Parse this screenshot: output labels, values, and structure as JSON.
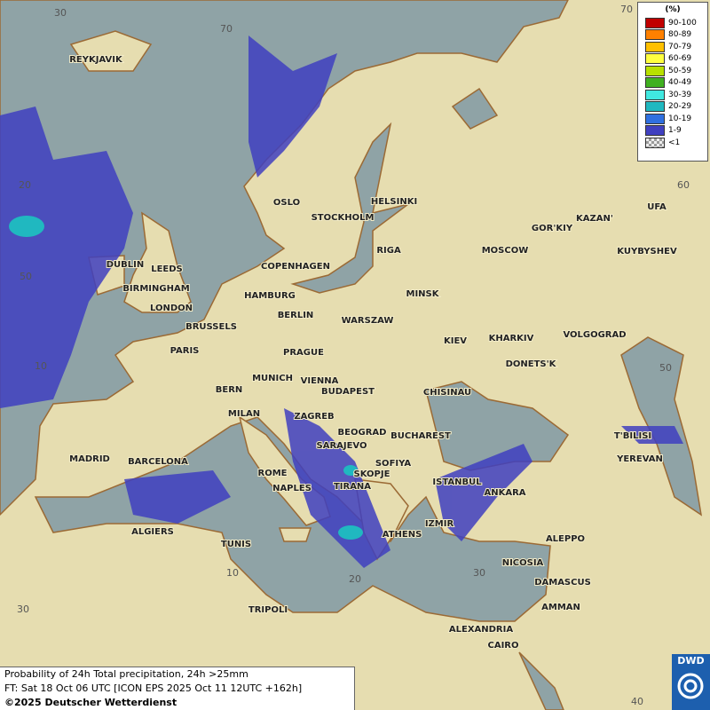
{
  "legend": {
    "title": "(%)",
    "items": [
      {
        "label": "90-100",
        "color": "#c00000"
      },
      {
        "label": "80-89",
        "color": "#ff8000"
      },
      {
        "label": "70-79",
        "color": "#ffc000"
      },
      {
        "label": "60-69",
        "color": "#ffff40"
      },
      {
        "label": "50-59",
        "color": "#b8e000"
      },
      {
        "label": "40-49",
        "color": "#40b020"
      },
      {
        "label": "30-39",
        "color": "#40e8e0"
      },
      {
        "label": "20-29",
        "color": "#20b8c0"
      },
      {
        "label": "10-19",
        "color": "#3070e0"
      },
      {
        "label": "1-9",
        "color": "#4040c0"
      },
      {
        "label": "<1",
        "color": "#9a9a9a"
      }
    ]
  },
  "grid_labels": [
    "30",
    "70",
    "70",
    "20",
    "50",
    "10",
    "60",
    "50",
    "10",
    "20",
    "30",
    "30",
    "40"
  ],
  "cities": [
    "REYKJAVIK",
    "OSLO",
    "STOCKHOLM",
    "HELSINKI",
    "DUBLIN",
    "LEEDS",
    "BIRMINGHAM",
    "LONDON",
    "COPENHAGEN",
    "RIGA",
    "MOSCOW",
    "GOR'KIY",
    "KAZAN'",
    "UFA",
    "KUYBYSHEV",
    "HAMBURG",
    "BERLIN",
    "MINSK",
    "WARSZAW",
    "BRUSSELS",
    "PARIS",
    "PRAGUE",
    "KIEV",
    "KHARKIV",
    "VOLGOGRAD",
    "MUNICH",
    "VIENNA",
    "BUDAPEST",
    "BERN",
    "MILAN",
    "CHISINAU",
    "DONETS'K",
    "ZAGREB",
    "BEOGRAD",
    "BUCHAREST",
    "T'BILISI",
    "SARAJEVO",
    "MADRID",
    "BARCELONA",
    "SOFIYA",
    "YEREVAN",
    "ROME",
    "SKOPJE",
    "ISTANBUL",
    "NAPLES",
    "TIRANA",
    "ANKARA",
    "ALGIERS",
    "ATHENS",
    "IZMIR",
    "ALEPPO",
    "TUNIS",
    "NICOSIA",
    "DAMASCUS",
    "AMMAN",
    "TRIPOLI",
    "ALEXANDRIA",
    "CAIRO"
  ],
  "footer": {
    "lines": [
      "Probability of 24h Total precipitation, 24h >25mm",
      "FT: Sat 18 Oct 06 UTC [ICON EPS 2025 Oct 11 12UTC +162h]",
      "©2025 Deutscher Wetterdienst"
    ]
  },
  "logo": "DWD"
}
